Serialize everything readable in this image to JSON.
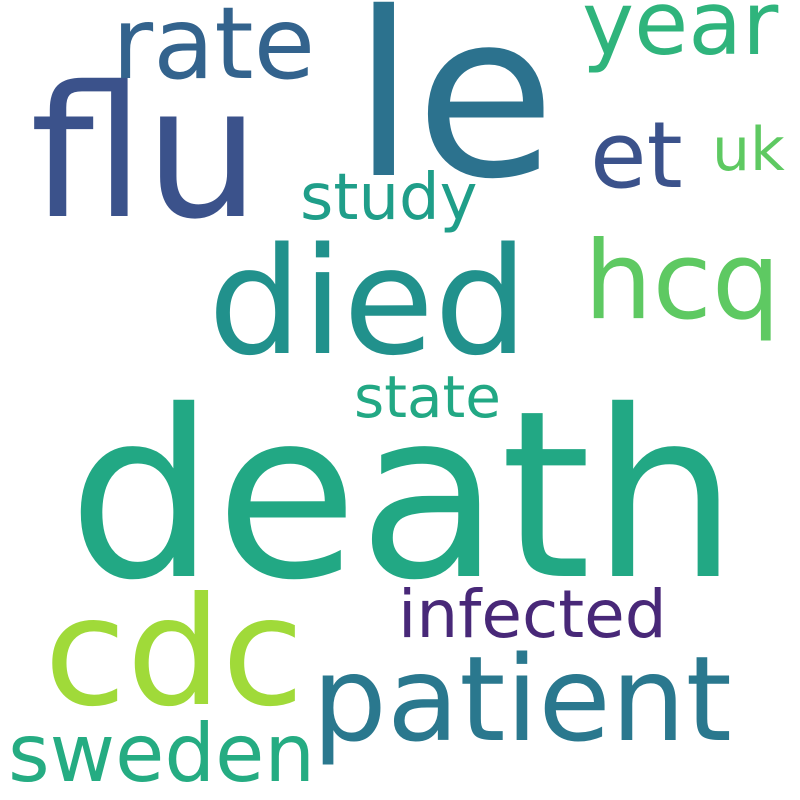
{
  "words": [
    {
      "text": "death",
      "color": "#22a884"
    },
    {
      "text": "le",
      "color": "#2c728e"
    },
    {
      "text": "flu",
      "color": "#3b528b"
    },
    {
      "text": "died",
      "color": "#21918c"
    },
    {
      "text": "cdc",
      "color": "#a0da39"
    },
    {
      "text": "patient",
      "color": "#2a788e"
    },
    {
      "text": "rate",
      "color": "#33638d"
    },
    {
      "text": "hcq",
      "color": "#5ec962"
    },
    {
      "text": "year",
      "color": "#2fb47c"
    },
    {
      "text": "et",
      "color": "#3b528b"
    },
    {
      "text": "uk",
      "color": "#5ec962"
    },
    {
      "text": "study",
      "color": "#1f9e89"
    },
    {
      "text": "state",
      "color": "#22a884"
    },
    {
      "text": "infected",
      "color": "#482878"
    },
    {
      "text": "sweden",
      "color": "#25ac82"
    }
  ]
}
